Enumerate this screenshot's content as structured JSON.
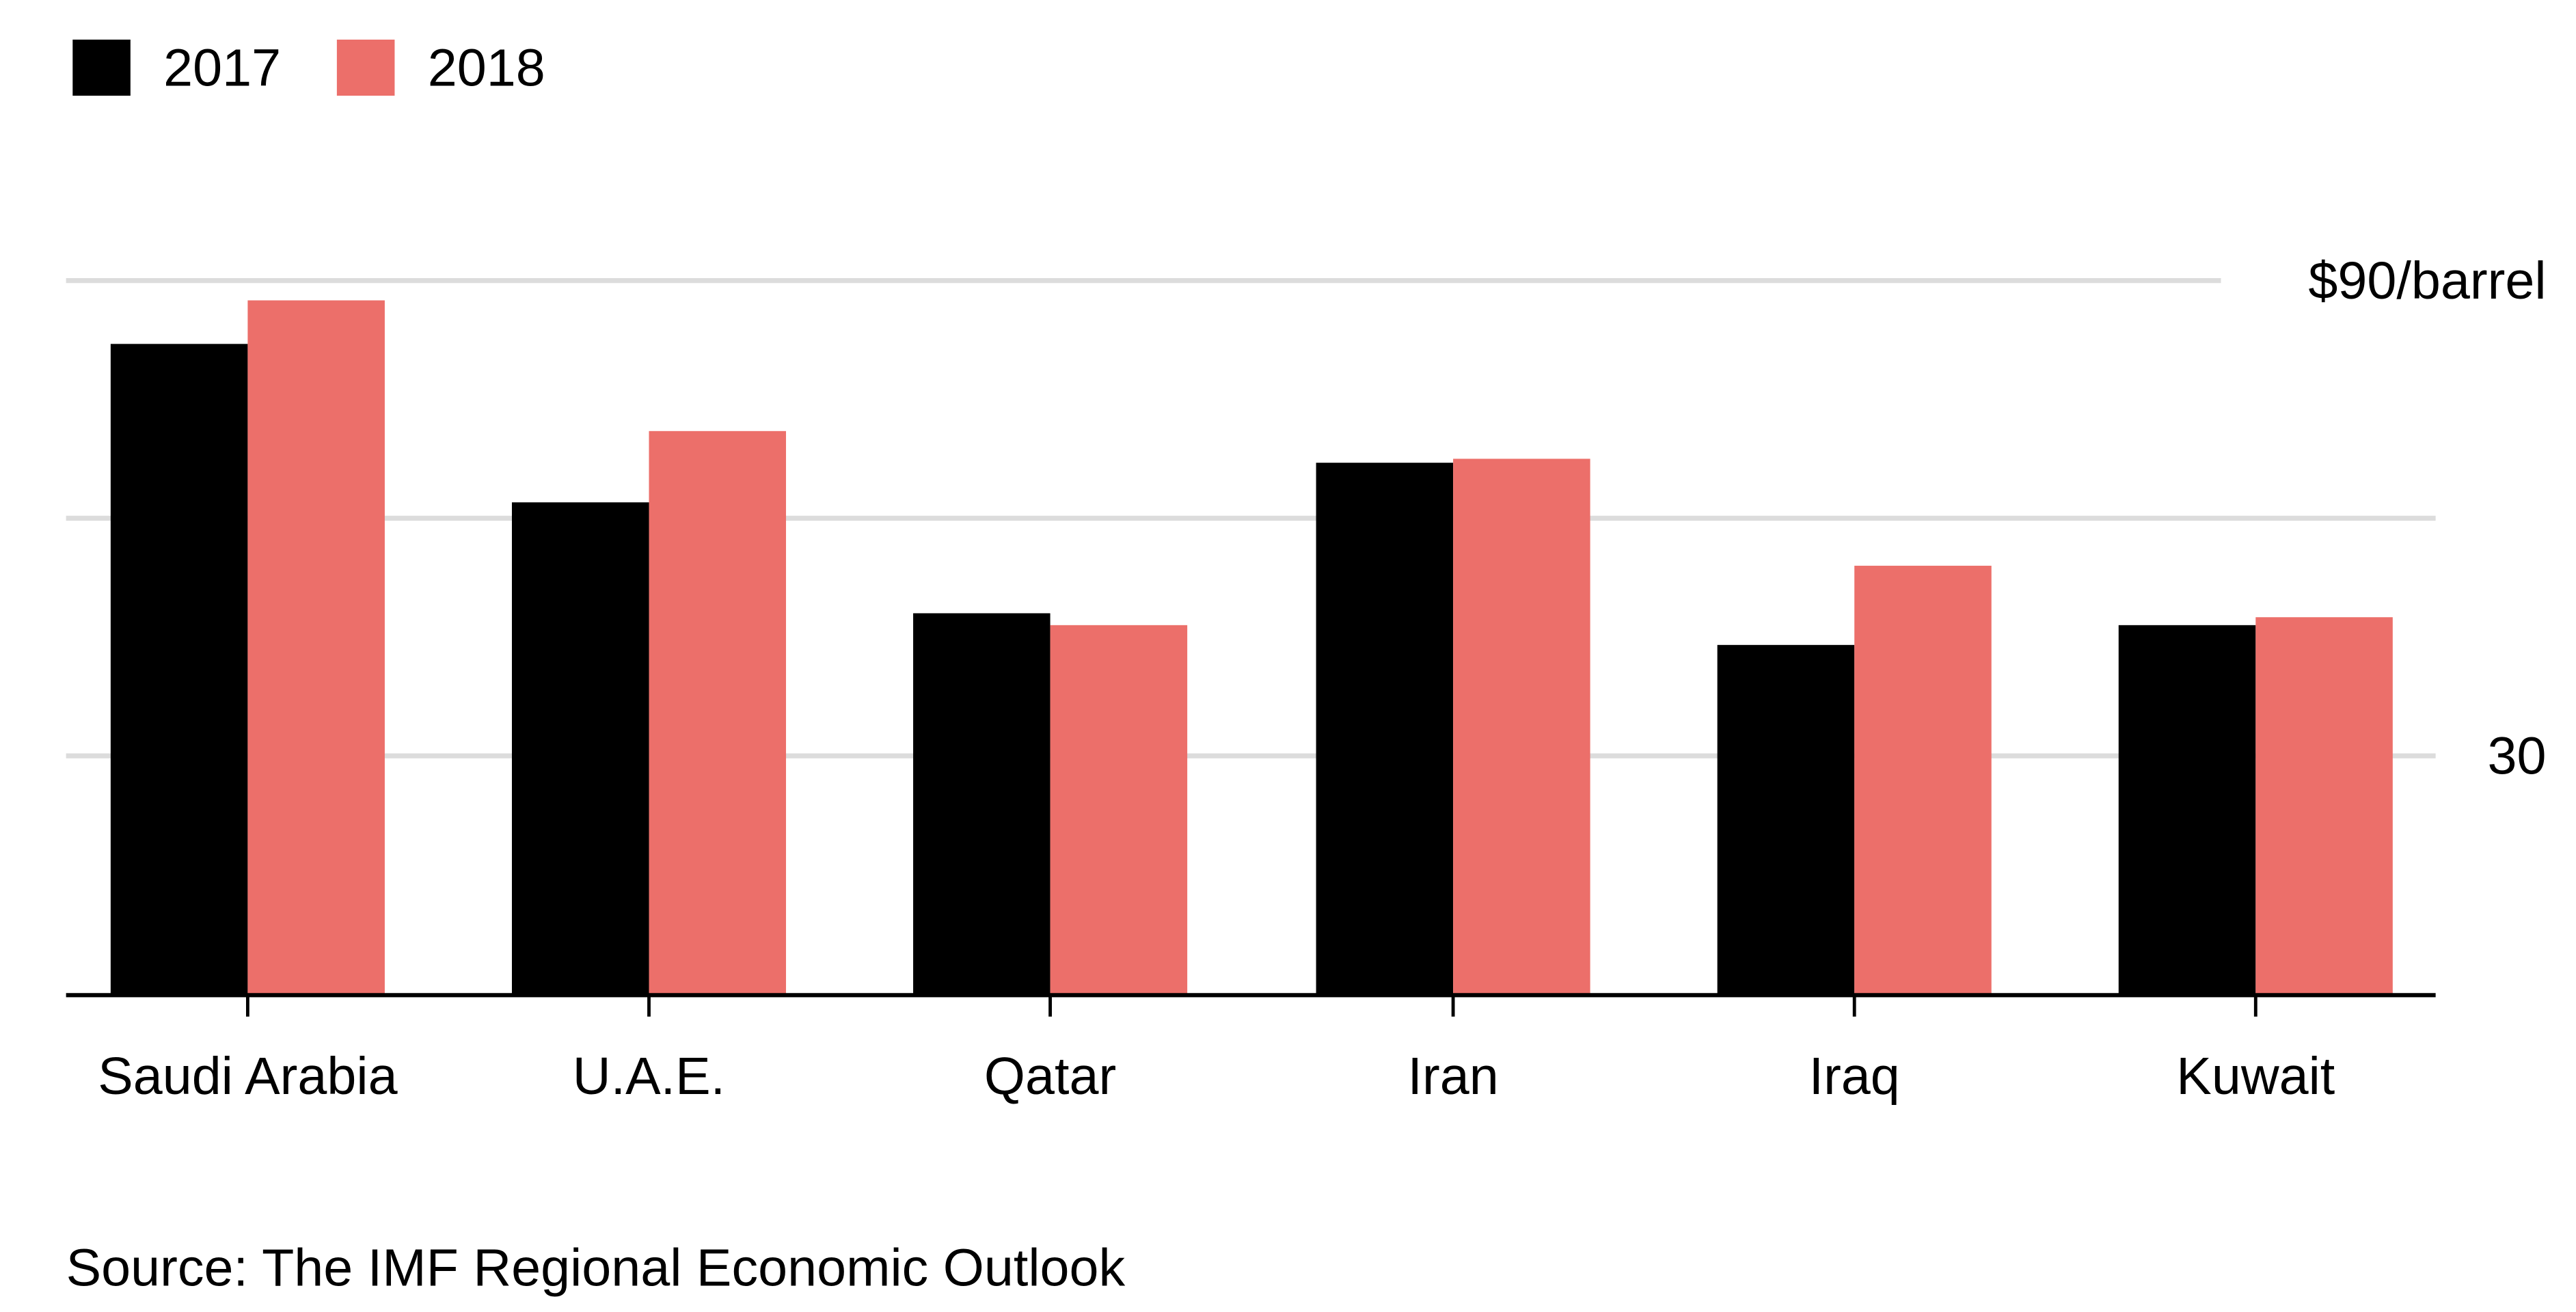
{
  "chart_data": {
    "type": "bar",
    "title": "",
    "xlabel": "",
    "ylabel": "",
    "ylim": [
      0,
      90
    ],
    "y_ticks": [
      30,
      60,
      90
    ],
    "y_tick_labels": {
      "30": "30",
      "60": "",
      "90": "$90/barrel"
    },
    "grid": true,
    "legend_position": "top-left",
    "categories": [
      "Saudi Arabia",
      "U.A.E.",
      "Qatar",
      "Iran",
      "Iraq",
      "Kuwait"
    ],
    "series": [
      {
        "name": "2017",
        "color": "#000000",
        "values": [
          82,
          62,
          48,
          67,
          44,
          46.5
        ]
      },
      {
        "name": "2018",
        "color": "#ec6f6a",
        "values": [
          87.5,
          71,
          46.5,
          67.5,
          54,
          47.5
        ]
      }
    ],
    "source": "Source: The IMF Regional Economic Outlook"
  }
}
